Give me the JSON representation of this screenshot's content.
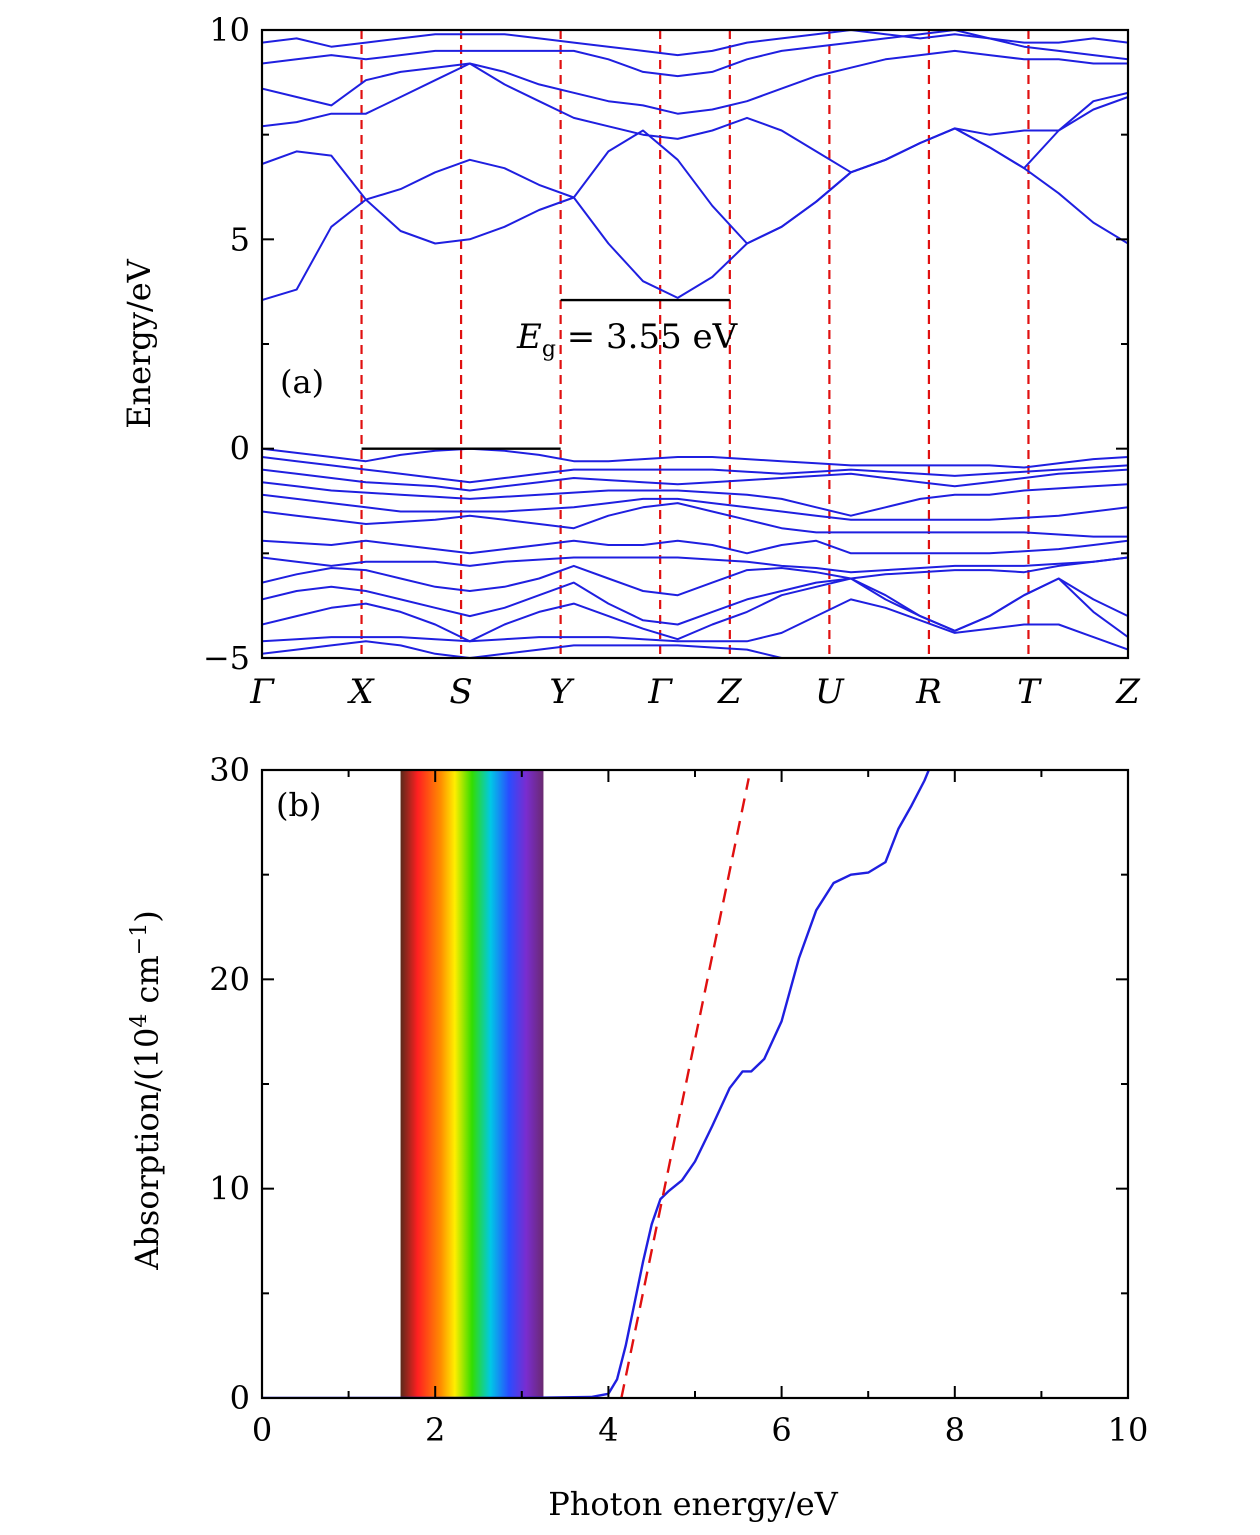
{
  "chart_data": [
    {
      "panel": "(a)",
      "type": "line",
      "ylabel": "Energy/eV",
      "ylim": [
        -5,
        10
      ],
      "yticks": [
        "10",
        "5",
        "0",
        "−5"
      ],
      "kpoints": [
        "Γ",
        "X",
        "S",
        "Y",
        "Γ",
        "Z",
        "U",
        "R",
        "T",
        "Z"
      ],
      "kpoint_positions": [
        0,
        1,
        2,
        3,
        4,
        4.7,
        5.7,
        6.7,
        7.7,
        8.7
      ],
      "annotation": {
        "E": "E",
        "sub": "g",
        "rest": " = 3.55 eV"
      },
      "valence_top_marker": {
        "x": [
          1,
          3
        ],
        "y": 0
      },
      "conduction_min_marker": {
        "x": [
          3,
          4.7
        ],
        "y": 3.55
      },
      "colors": {
        "bands": "#1f1fe0",
        "kpoint_lines": "#e01010",
        "markers": "#000000"
      },
      "series": [
        {
          "values": [
            3.55,
            3.8,
            5.3,
            5.95,
            6.2,
            6.6,
            6.9,
            6.7,
            6.3,
            6.0,
            7.1,
            7.6,
            6.9,
            5.8,
            4.9,
            5.3,
            5.9,
            6.6,
            6.9,
            7.3,
            7.65,
            7.2,
            6.7,
            6.1,
            5.4,
            4.9
          ]
        },
        {
          "values": [
            6.8,
            7.1,
            7.0,
            5.95,
            5.2,
            4.9,
            5.0,
            5.3,
            5.7,
            6.0,
            4.9,
            4.0,
            3.6,
            4.1,
            4.9,
            5.3,
            5.9,
            6.6,
            6.9,
            7.3,
            7.65,
            7.2,
            6.7,
            7.6,
            8.3,
            8.5
          ]
        },
        {
          "values": [
            7.7,
            7.8,
            8.0,
            8.0,
            8.4,
            8.8,
            9.2,
            8.7,
            8.3,
            7.9,
            7.7,
            7.5,
            7.4,
            7.6,
            7.9,
            7.6,
            7.1,
            6.6,
            6.9,
            7.3,
            7.65,
            7.5,
            7.6,
            7.6,
            8.1,
            8.4
          ]
        },
        {
          "values": [
            8.6,
            8.4,
            8.2,
            8.8,
            9.0,
            9.1,
            9.2,
            9.0,
            8.7,
            8.5,
            8.3,
            8.2,
            8.0,
            8.1,
            8.3,
            8.6,
            8.9,
            9.1,
            9.3,
            9.4,
            9.5,
            9.4,
            9.3,
            9.3,
            9.2,
            9.2
          ]
        },
        {
          "values": [
            9.2,
            9.3,
            9.4,
            9.3,
            9.4,
            9.5,
            9.5,
            9.5,
            9.5,
            9.5,
            9.3,
            9.0,
            8.9,
            9.0,
            9.3,
            9.5,
            9.6,
            9.7,
            9.8,
            9.9,
            10.0,
            9.8,
            9.6,
            9.5,
            9.4,
            9.3
          ]
        },
        {
          "values": [
            9.7,
            9.8,
            9.6,
            9.7,
            9.8,
            9.9,
            9.9,
            9.9,
            9.8,
            9.7,
            9.6,
            9.5,
            9.4,
            9.5,
            9.7,
            9.8,
            9.9,
            10.0,
            9.9,
            9.8,
            9.9,
            9.8,
            9.7,
            9.7,
            9.8,
            9.7
          ]
        },
        {
          "values": [
            0.0,
            -0.1,
            -0.2,
            -0.3,
            -0.15,
            -0.05,
            0.0,
            -0.05,
            -0.15,
            -0.3,
            -0.3,
            -0.25,
            -0.2,
            -0.2,
            -0.25,
            -0.3,
            -0.35,
            -0.4,
            -0.4,
            -0.4,
            -0.4,
            -0.4,
            -0.45,
            -0.35,
            -0.25,
            -0.2
          ]
        },
        {
          "values": [
            -0.2,
            -0.3,
            -0.4,
            -0.5,
            -0.6,
            -0.7,
            -0.8,
            -0.7,
            -0.6,
            -0.5,
            -0.5,
            -0.5,
            -0.5,
            -0.5,
            -0.55,
            -0.6,
            -0.55,
            -0.5,
            -0.55,
            -0.6,
            -0.65,
            -0.6,
            -0.55,
            -0.5,
            -0.45,
            -0.4
          ]
        },
        {
          "values": [
            -0.5,
            -0.6,
            -0.7,
            -0.8,
            -0.85,
            -0.9,
            -1.0,
            -0.9,
            -0.8,
            -0.7,
            -0.75,
            -0.8,
            -0.85,
            -0.8,
            -0.75,
            -0.7,
            -0.65,
            -0.6,
            -0.7,
            -0.8,
            -0.9,
            -0.8,
            -0.7,
            -0.6,
            -0.55,
            -0.5
          ]
        },
        {
          "values": [
            -0.8,
            -0.9,
            -1.0,
            -1.05,
            -1.1,
            -1.15,
            -1.2,
            -1.15,
            -1.1,
            -1.05,
            -1.0,
            -1.0,
            -1.0,
            -1.05,
            -1.1,
            -1.2,
            -1.4,
            -1.6,
            -1.4,
            -1.2,
            -1.1,
            -1.1,
            -1.0,
            -0.95,
            -0.9,
            -0.85
          ]
        },
        {
          "values": [
            -1.1,
            -1.2,
            -1.3,
            -1.4,
            -1.5,
            -1.5,
            -1.5,
            -1.5,
            -1.45,
            -1.4,
            -1.3,
            -1.2,
            -1.2,
            -1.3,
            -1.4,
            -1.5,
            -1.6,
            -1.7,
            -1.7,
            -1.7,
            -1.7,
            -1.7,
            -1.65,
            -1.6,
            -1.5,
            -1.4
          ]
        },
        {
          "values": [
            -1.5,
            -1.6,
            -1.7,
            -1.8,
            -1.75,
            -1.7,
            -1.6,
            -1.7,
            -1.8,
            -1.9,
            -1.6,
            -1.4,
            -1.3,
            -1.5,
            -1.7,
            -1.9,
            -2.0,
            -2.0,
            -2.0,
            -2.0,
            -2.0,
            -2.0,
            -2.0,
            -2.05,
            -2.1,
            -2.1
          ]
        },
        {
          "values": [
            -2.2,
            -2.25,
            -2.3,
            -2.2,
            -2.3,
            -2.4,
            -2.5,
            -2.4,
            -2.3,
            -2.2,
            -2.3,
            -2.3,
            -2.2,
            -2.3,
            -2.5,
            -2.3,
            -2.2,
            -2.5,
            -2.5,
            -2.5,
            -2.5,
            -2.5,
            -2.45,
            -2.4,
            -2.3,
            -2.2
          ]
        },
        {
          "values": [
            -2.6,
            -2.7,
            -2.8,
            -2.7,
            -2.7,
            -2.7,
            -2.8,
            -2.7,
            -2.65,
            -2.6,
            -2.6,
            -2.6,
            -2.6,
            -2.65,
            -2.7,
            -2.8,
            -2.85,
            -2.95,
            -2.9,
            -2.85,
            -2.8,
            -2.8,
            -2.8,
            -2.75,
            -2.7,
            -2.6
          ]
        },
        {
          "values": [
            -3.2,
            -3.0,
            -2.85,
            -2.9,
            -3.1,
            -3.3,
            -3.4,
            -3.3,
            -3.1,
            -2.8,
            -3.1,
            -3.4,
            -3.5,
            -3.2,
            -2.9,
            -2.85,
            -2.95,
            -3.1,
            -3.0,
            -2.95,
            -2.9,
            -2.9,
            -2.95,
            -2.8,
            -2.7,
            -2.6
          ]
        },
        {
          "values": [
            -3.6,
            -3.4,
            -3.3,
            -3.4,
            -3.6,
            -3.8,
            -4.0,
            -3.8,
            -3.5,
            -3.2,
            -3.7,
            -4.1,
            -4.2,
            -3.9,
            -3.6,
            -3.4,
            -3.2,
            -3.1,
            -3.5,
            -4.0,
            -4.35,
            -4.0,
            -3.5,
            -3.1,
            -3.6,
            -4.0
          ]
        },
        {
          "values": [
            -4.2,
            -4.0,
            -3.8,
            -3.7,
            -3.9,
            -4.2,
            -4.6,
            -4.2,
            -3.9,
            -3.7,
            -4.0,
            -4.3,
            -4.55,
            -4.2,
            -3.9,
            -3.5,
            -3.3,
            -3.1,
            -3.6,
            -4.0,
            -4.35,
            -4.0,
            -3.5,
            -3.1,
            -3.9,
            -4.5
          ]
        },
        {
          "values": [
            -4.6,
            -4.55,
            -4.5,
            -4.5,
            -4.5,
            -4.55,
            -4.6,
            -4.55,
            -4.5,
            -4.5,
            -4.5,
            -4.55,
            -4.6,
            -4.6,
            -4.6,
            -4.4,
            -4.0,
            -3.6,
            -3.8,
            -4.1,
            -4.4,
            -4.3,
            -4.2,
            -4.2,
            -4.5,
            -4.8
          ]
        },
        {
          "values": [
            -4.9,
            -4.8,
            -4.7,
            -4.6,
            -4.7,
            -4.9,
            -5.0,
            -4.9,
            -4.8,
            -4.7,
            -4.7,
            -4.7,
            -4.7,
            -4.75,
            -4.8,
            -5.0,
            -5.0,
            -5.0,
            -5.0,
            -5.0,
            -5.0,
            -5.0,
            -5.0,
            -5.0,
            -5.0,
            -5.0
          ]
        }
      ]
    },
    {
      "panel": "(b)",
      "type": "line",
      "xlabel": "Photon energy/eV",
      "ylabel": {
        "pre": "Absorption/(10",
        "sup": "4",
        "mid": " cm",
        "sup2": "−1",
        "post": ")"
      },
      "xlim": [
        0,
        10
      ],
      "ylim": [
        0,
        30
      ],
      "xticks": [
        "0",
        "2",
        "4",
        "6",
        "8",
        "10"
      ],
      "yticks": [
        "0",
        "10",
        "20",
        "30"
      ],
      "visible_band": {
        "x": [
          1.6,
          3.25
        ]
      },
      "colors": {
        "curve": "#1f1fe0",
        "fit": "#e01010"
      },
      "series": [
        {
          "x": [
            0,
            1,
            2,
            3,
            3.8,
            4.0,
            4.1,
            4.2,
            4.3,
            4.4,
            4.5,
            4.6,
            4.7,
            4.85,
            5.0,
            5.2,
            5.4,
            5.55,
            5.65,
            5.8,
            6.0,
            6.2,
            6.4,
            6.6,
            6.8,
            7.0,
            7.2,
            7.35,
            7.5,
            7.65,
            7.7
          ],
          "values": [
            0,
            0,
            0,
            0,
            0.05,
            0.2,
            0.9,
            2.5,
            4.5,
            6.5,
            8.3,
            9.5,
            9.9,
            10.4,
            11.3,
            13.0,
            14.8,
            15.6,
            15.6,
            16.2,
            18.0,
            21.0,
            23.3,
            24.6,
            25.0,
            25.1,
            25.6,
            27.2,
            28.3,
            29.5,
            30.0
          ]
        },
        {
          "x": [
            4.15,
            5.62
          ],
          "values": [
            0,
            29.6
          ]
        }
      ]
    }
  ]
}
